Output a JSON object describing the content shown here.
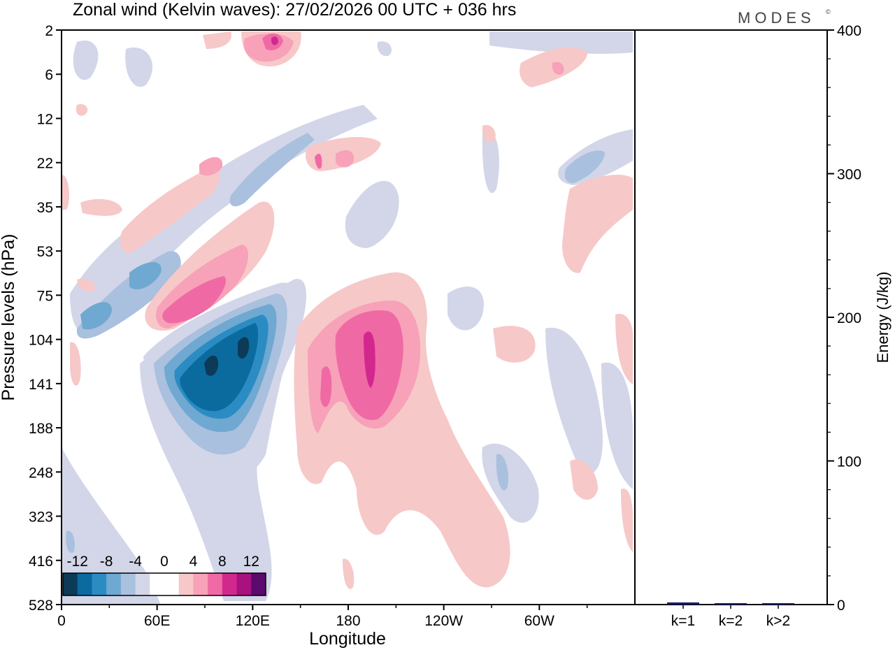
{
  "header": {
    "title": "Zonal wind (Kelvin waves):  27/02/2026  00 UTC  + 036 hrs",
    "brand": "MODES",
    "brand_mark": "©"
  },
  "chart_data": [
    {
      "type": "heatmap",
      "title": "Zonal wind (Kelvin waves):  27/02/2026  00 UTC  + 036 hrs",
      "xlabel": "Longitude",
      "ylabel": "Pressure levels (hPa)",
      "x_ticks": [
        "0",
        "60E",
        "120E",
        "180",
        "120W",
        "60W"
      ],
      "x_tick_degrees": [
        0,
        60,
        120,
        180,
        240,
        300
      ],
      "xlim": [
        0,
        360
      ],
      "y_ticks": [
        "2",
        "6",
        "12",
        "22",
        "35",
        "53",
        "75",
        "104",
        "141",
        "188",
        "248",
        "323",
        "416",
        "528"
      ],
      "colorbar": {
        "labels": [
          "-12",
          "-8",
          "-4",
          "0",
          "4",
          "8",
          "12"
        ],
        "colors": [
          "#0d3a56",
          "#0b6a9e",
          "#2b8cc4",
          "#6fa8d0",
          "#a9c0de",
          "#d2d6e8",
          "#ffffff",
          "#ffffff",
          "#f7c8c8",
          "#f7a2b8",
          "#ef6aa4",
          "#d2288e",
          "#a8117e",
          "#5b0a6e"
        ]
      },
      "regions": [
        {
          "sign": "negative",
          "level": -12,
          "lon": 75,
          "pressure_hPa": 120,
          "note": "strongest easterly core"
        },
        {
          "sign": "negative",
          "level": -12,
          "lon": 110,
          "pressure_hPa": 110
        },
        {
          "sign": "negative",
          "level": -8,
          "lon": 20,
          "pressure_hPa": 90
        },
        {
          "sign": "positive",
          "level": 12,
          "lon": 192,
          "pressure_hPa": 120,
          "note": "strongest westerly core"
        },
        {
          "sign": "positive",
          "level": 8,
          "lon": 60,
          "pressure_hPa": 85
        },
        {
          "sign": "positive",
          "level": 8,
          "lon": 135,
          "pressure_hPa": 3
        }
      ]
    },
    {
      "type": "bar",
      "ylabel": "Energy (J/kg)",
      "categories": [
        "k=1",
        "k=2",
        "k>2"
      ],
      "values": [
        1.5,
        1,
        1
      ],
      "ylim": [
        0,
        400
      ],
      "y_ticks": [
        "0",
        "100",
        "200",
        "300",
        "400"
      ],
      "bar_color": "#1a1a6e"
    }
  ]
}
